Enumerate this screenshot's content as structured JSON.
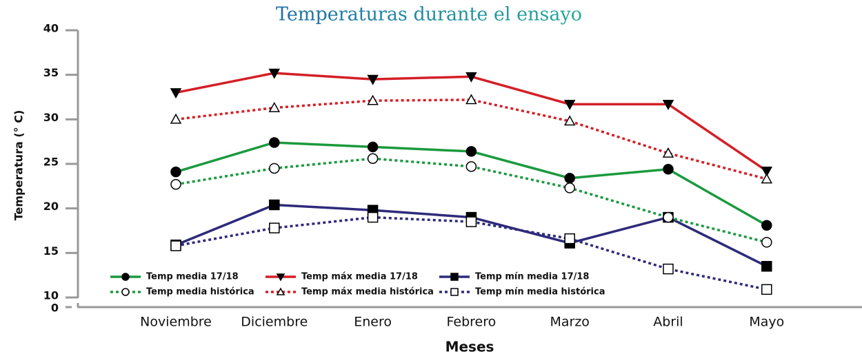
{
  "chart_data": {
    "type": "line",
    "title": "Temperaturas durante el ensayo",
    "x_label": "Meses",
    "y_label": "Temperatura (° C)",
    "categories": [
      "Noviembre",
      "Diciembre",
      "Enero",
      "Febrero",
      "Marzo",
      "Abril",
      "Mayo"
    ],
    "ylim": [
      10,
      40
    ],
    "yticks": [
      10,
      15,
      20,
      25,
      30,
      35,
      40
    ],
    "y_axis_break_label": "0",
    "series": [
      {
        "name": "Temp media 17/18",
        "color": "#1a9a3e",
        "dash": "solid",
        "marker": "circle",
        "marker_fill": "filled",
        "values": [
          24.1,
          27.4,
          26.9,
          26.4,
          23.4,
          24.4,
          18.1
        ]
      },
      {
        "name": "Temp máx media 17/18",
        "color": "#d41f26",
        "dash": "solid",
        "marker": "triangle-down",
        "marker_fill": "filled",
        "values": [
          33.0,
          35.2,
          34.5,
          34.8,
          31.7,
          31.7,
          24.2
        ]
      },
      {
        "name": "Temp mín media 17/18",
        "color": "#2e2a7a",
        "dash": "solid",
        "marker": "square",
        "marker_fill": "filled",
        "values": [
          15.9,
          20.4,
          19.8,
          19.0,
          16.1,
          19.0,
          13.5
        ]
      },
      {
        "name": "Temp media histórica",
        "color": "#1a9a3e",
        "dash": "dotted",
        "marker": "circle",
        "marker_fill": "open",
        "values": [
          22.7,
          24.5,
          25.6,
          24.7,
          22.3,
          19.0,
          16.2
        ]
      },
      {
        "name": "Temp máx media histórica",
        "color": "#d41f26",
        "dash": "dotted",
        "marker": "triangle-up",
        "marker_fill": "open",
        "values": [
          30.0,
          31.3,
          32.1,
          32.2,
          29.8,
          26.2,
          23.3
        ]
      },
      {
        "name": "Temp mín media histórica",
        "color": "#2e2a7a",
        "dash": "dotted",
        "marker": "square",
        "marker_fill": "open",
        "values": [
          15.8,
          17.8,
          19.0,
          18.5,
          16.6,
          13.2,
          10.9
        ]
      }
    ]
  }
}
